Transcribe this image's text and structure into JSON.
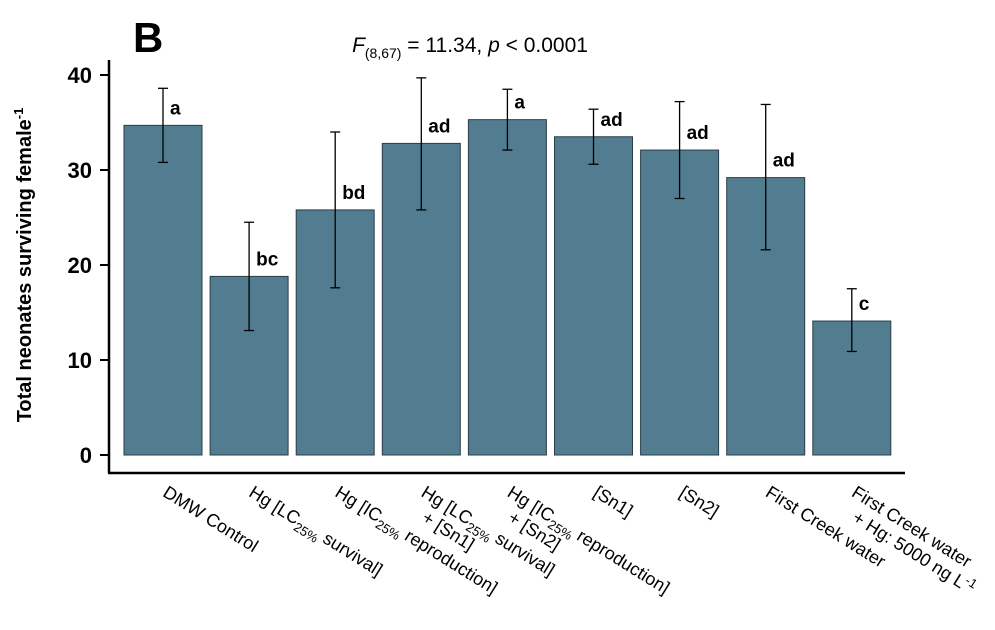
{
  "panel_label": "B",
  "stat_annotation": {
    "letter": "F",
    "df": "(8,67)",
    "equals": " = 11.34, ",
    "p_letter": "p",
    "p_rest": " < 0.0001"
  },
  "chart_data": {
    "type": "bar",
    "ylabel": "Total neonates surviving female",
    "ylabel_superscript": "-1",
    "ylim": [
      0,
      40
    ],
    "yticks": [
      0,
      10,
      20,
      30,
      40
    ],
    "grid": false,
    "bar_color": "#527c8f",
    "categories": [
      {
        "lines": [
          [
            {
              "t": "DMW Control"
            }
          ]
        ]
      },
      {
        "lines": [
          [
            {
              "t": "Hg [LC"
            },
            {
              "t": "25%",
              "sub": true
            },
            {
              "t": " survival]"
            }
          ]
        ]
      },
      {
        "lines": [
          [
            {
              "t": "Hg [IC"
            },
            {
              "t": "25%",
              "sub": true
            },
            {
              "t": " reproduction]"
            }
          ]
        ]
      },
      {
        "lines": [
          [
            {
              "t": "Hg [LC"
            },
            {
              "t": "25%",
              "sub": true
            },
            {
              "t": " survival]"
            }
          ],
          [
            {
              "t": "+ [Sn1]"
            }
          ]
        ]
      },
      {
        "lines": [
          [
            {
              "t": "Hg [IC"
            },
            {
              "t": "25%",
              "sub": true
            },
            {
              "t": " reproduction]"
            }
          ],
          [
            {
              "t": "+ [Sn2]"
            }
          ]
        ]
      },
      {
        "lines": [
          [
            {
              "t": "[Sn1]"
            }
          ]
        ]
      },
      {
        "lines": [
          [
            {
              "t": "[Sn2]"
            }
          ]
        ]
      },
      {
        "lines": [
          [
            {
              "t": "First Creek water"
            }
          ]
        ]
      },
      {
        "lines": [
          [
            {
              "t": "First Creek water"
            }
          ],
          [
            {
              "t": "+ Hg: 5000 ng L"
            },
            {
              "t": "-1",
              "sup": true
            }
          ]
        ]
      }
    ],
    "values": [
      34.7,
      18.8,
      25.8,
      32.8,
      35.3,
      33.5,
      32.1,
      29.2,
      14.1
    ],
    "error_low": [
      30.8,
      13.1,
      17.6,
      25.8,
      32.1,
      30.6,
      27.0,
      21.6,
      10.9
    ],
    "error_high": [
      38.6,
      24.5,
      34.0,
      39.7,
      38.5,
      36.4,
      37.2,
      36.9,
      17.5
    ],
    "letters": [
      "a",
      "bc",
      "bd",
      "ad",
      "a",
      "ad",
      "ad",
      "ad",
      "c"
    ]
  }
}
